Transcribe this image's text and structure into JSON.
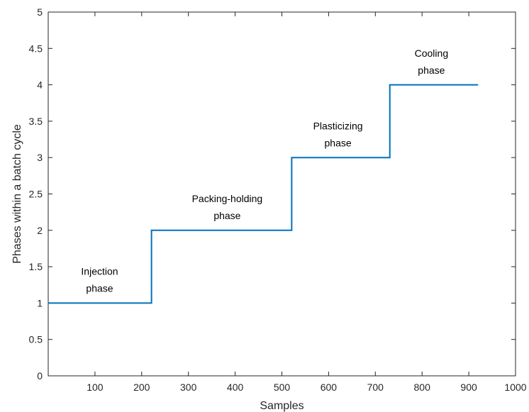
{
  "chart_data": {
    "type": "line",
    "title": "",
    "xlabel": "Samples",
    "ylabel": "Phases within a batch cycle",
    "xlim": [
      0,
      1000
    ],
    "ylim": [
      0,
      5
    ],
    "xticks": [
      100,
      200,
      300,
      400,
      500,
      600,
      700,
      800,
      900,
      1000
    ],
    "yticks": [
      0,
      0.5,
      1,
      1.5,
      2,
      2.5,
      3,
      3.5,
      4,
      4.5,
      5
    ],
    "xtick_labels": [
      "100",
      "200",
      "300",
      "400",
      "500",
      "600",
      "700",
      "800",
      "900",
      "1000"
    ],
    "ytick_labels": [
      "0",
      "0.5",
      "1",
      "1.5",
      "2",
      "2.5",
      "3",
      "3.5",
      "4",
      "4.5",
      "5"
    ],
    "grid": false,
    "line_color": "#0072BD",
    "series": [
      {
        "x": [
          0,
          221,
          221,
          521,
          521,
          731,
          731,
          920
        ],
        "y": [
          1,
          1,
          2,
          2,
          3,
          3,
          4,
          4
        ]
      }
    ],
    "annotations": [
      {
        "lines": [
          "Injection",
          "phase"
        ],
        "x": 110,
        "y": 1.27
      },
      {
        "lines": [
          "Packing-holding",
          "phase"
        ],
        "x": 383,
        "y": 2.27
      },
      {
        "lines": [
          "Plasticizing",
          "phase"
        ],
        "x": 620,
        "y": 3.27
      },
      {
        "lines": [
          "Cooling",
          "phase"
        ],
        "x": 820,
        "y": 4.27
      }
    ]
  }
}
